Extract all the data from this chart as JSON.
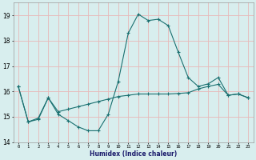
{
  "title": "",
  "xlabel": "Humidex (Indice chaleur)",
  "ylabel": "",
  "bg_color": "#d8eeee",
  "grid_color": "#e8b8b8",
  "line_color": "#1a7070",
  "x_values": [
    0,
    1,
    2,
    3,
    4,
    5,
    6,
    7,
    8,
    9,
    10,
    11,
    12,
    13,
    14,
    15,
    16,
    17,
    18,
    19,
    20,
    21,
    22,
    23
  ],
  "series1": [
    16.2,
    14.8,
    14.9,
    15.75,
    15.1,
    14.85,
    14.6,
    14.45,
    14.45,
    15.1,
    16.4,
    18.3,
    19.05,
    18.8,
    18.85,
    18.6,
    17.55,
    16.55,
    16.2,
    16.3,
    16.55,
    15.85,
    15.9,
    15.75
  ],
  "series2": [
    16.2,
    14.8,
    14.95,
    15.75,
    15.2,
    15.3,
    15.4,
    15.5,
    15.6,
    15.7,
    15.8,
    15.85,
    15.9,
    15.9,
    15.9,
    15.9,
    15.92,
    15.95,
    16.1,
    16.2,
    16.28,
    15.85,
    15.9,
    15.75
  ],
  "ylim": [
    14.0,
    19.5
  ],
  "xlim": [
    -0.5,
    23.5
  ],
  "yticks": [
    14,
    15,
    16,
    17,
    18,
    19
  ],
  "xticks": [
    0,
    1,
    2,
    3,
    4,
    5,
    6,
    7,
    8,
    9,
    10,
    11,
    12,
    13,
    14,
    15,
    16,
    17,
    18,
    19,
    20,
    21,
    22,
    23
  ],
  "fig_width": 3.2,
  "fig_height": 2.0,
  "dpi": 100
}
